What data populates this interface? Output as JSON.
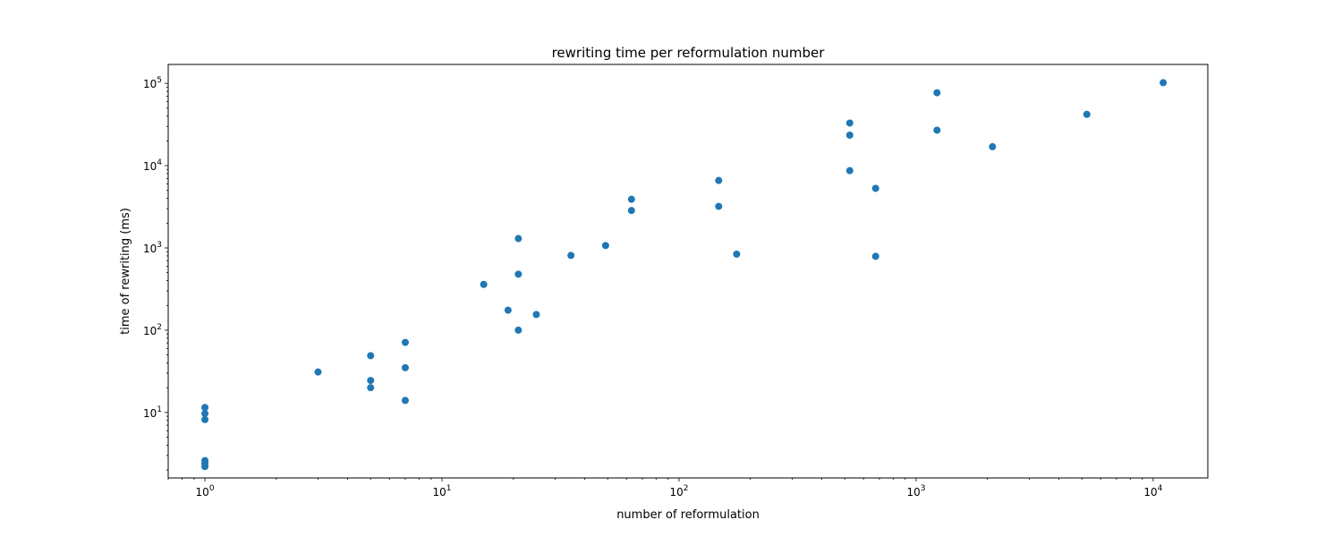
{
  "chart_data": {
    "type": "scatter",
    "title": "rewriting time per reformulation number",
    "xlabel": "number of reformulation",
    "ylabel": "time of rewriting (ms)",
    "xscale": "log",
    "yscale": "log",
    "xlim": [
      0.7,
      17000
    ],
    "ylim": [
      1.6,
      170000
    ],
    "grid": false,
    "legend": "none",
    "marker_color": "#1f77b4",
    "x_ticks": [
      {
        "value": 1,
        "base": "10",
        "exp": "0"
      },
      {
        "value": 10,
        "base": "10",
        "exp": "1"
      },
      {
        "value": 100,
        "base": "10",
        "exp": "2"
      },
      {
        "value": 1000,
        "base": "10",
        "exp": "3"
      },
      {
        "value": 10000,
        "base": "10",
        "exp": "4"
      }
    ],
    "y_ticks": [
      {
        "value": 10,
        "base": "10",
        "exp": "1"
      },
      {
        "value": 100,
        "base": "10",
        "exp": "2"
      },
      {
        "value": 1000,
        "base": "10",
        "exp": "3"
      },
      {
        "value": 10000,
        "base": "10",
        "exp": "4"
      },
      {
        "value": 100000,
        "base": "10",
        "exp": "5"
      }
    ],
    "points": [
      {
        "x": 1,
        "y": 11.5
      },
      {
        "x": 1,
        "y": 9.7
      },
      {
        "x": 1,
        "y": 8.2
      },
      {
        "x": 1,
        "y": 2.6
      },
      {
        "x": 1,
        "y": 2.4
      },
      {
        "x": 1,
        "y": 2.2
      },
      {
        "x": 3,
        "y": 31
      },
      {
        "x": 5,
        "y": 49
      },
      {
        "x": 5,
        "y": 24.5
      },
      {
        "x": 5,
        "y": 20
      },
      {
        "x": 7,
        "y": 71
      },
      {
        "x": 7,
        "y": 35
      },
      {
        "x": 7,
        "y": 14
      },
      {
        "x": 15,
        "y": 360
      },
      {
        "x": 19,
        "y": 175
      },
      {
        "x": 21,
        "y": 1300
      },
      {
        "x": 21,
        "y": 480
      },
      {
        "x": 21,
        "y": 100
      },
      {
        "x": 25,
        "y": 155
      },
      {
        "x": 35,
        "y": 810
      },
      {
        "x": 49,
        "y": 1070
      },
      {
        "x": 63,
        "y": 3900
      },
      {
        "x": 63,
        "y": 2850
      },
      {
        "x": 147,
        "y": 6600
      },
      {
        "x": 147,
        "y": 3200
      },
      {
        "x": 175,
        "y": 840
      },
      {
        "x": 525,
        "y": 33000
      },
      {
        "x": 525,
        "y": 23500
      },
      {
        "x": 525,
        "y": 8700
      },
      {
        "x": 675,
        "y": 5300
      },
      {
        "x": 675,
        "y": 790
      },
      {
        "x": 1225,
        "y": 77000
      },
      {
        "x": 1225,
        "y": 27000
      },
      {
        "x": 2100,
        "y": 17000
      },
      {
        "x": 5250,
        "y": 42000
      },
      {
        "x": 11025,
        "y": 102000
      }
    ]
  }
}
